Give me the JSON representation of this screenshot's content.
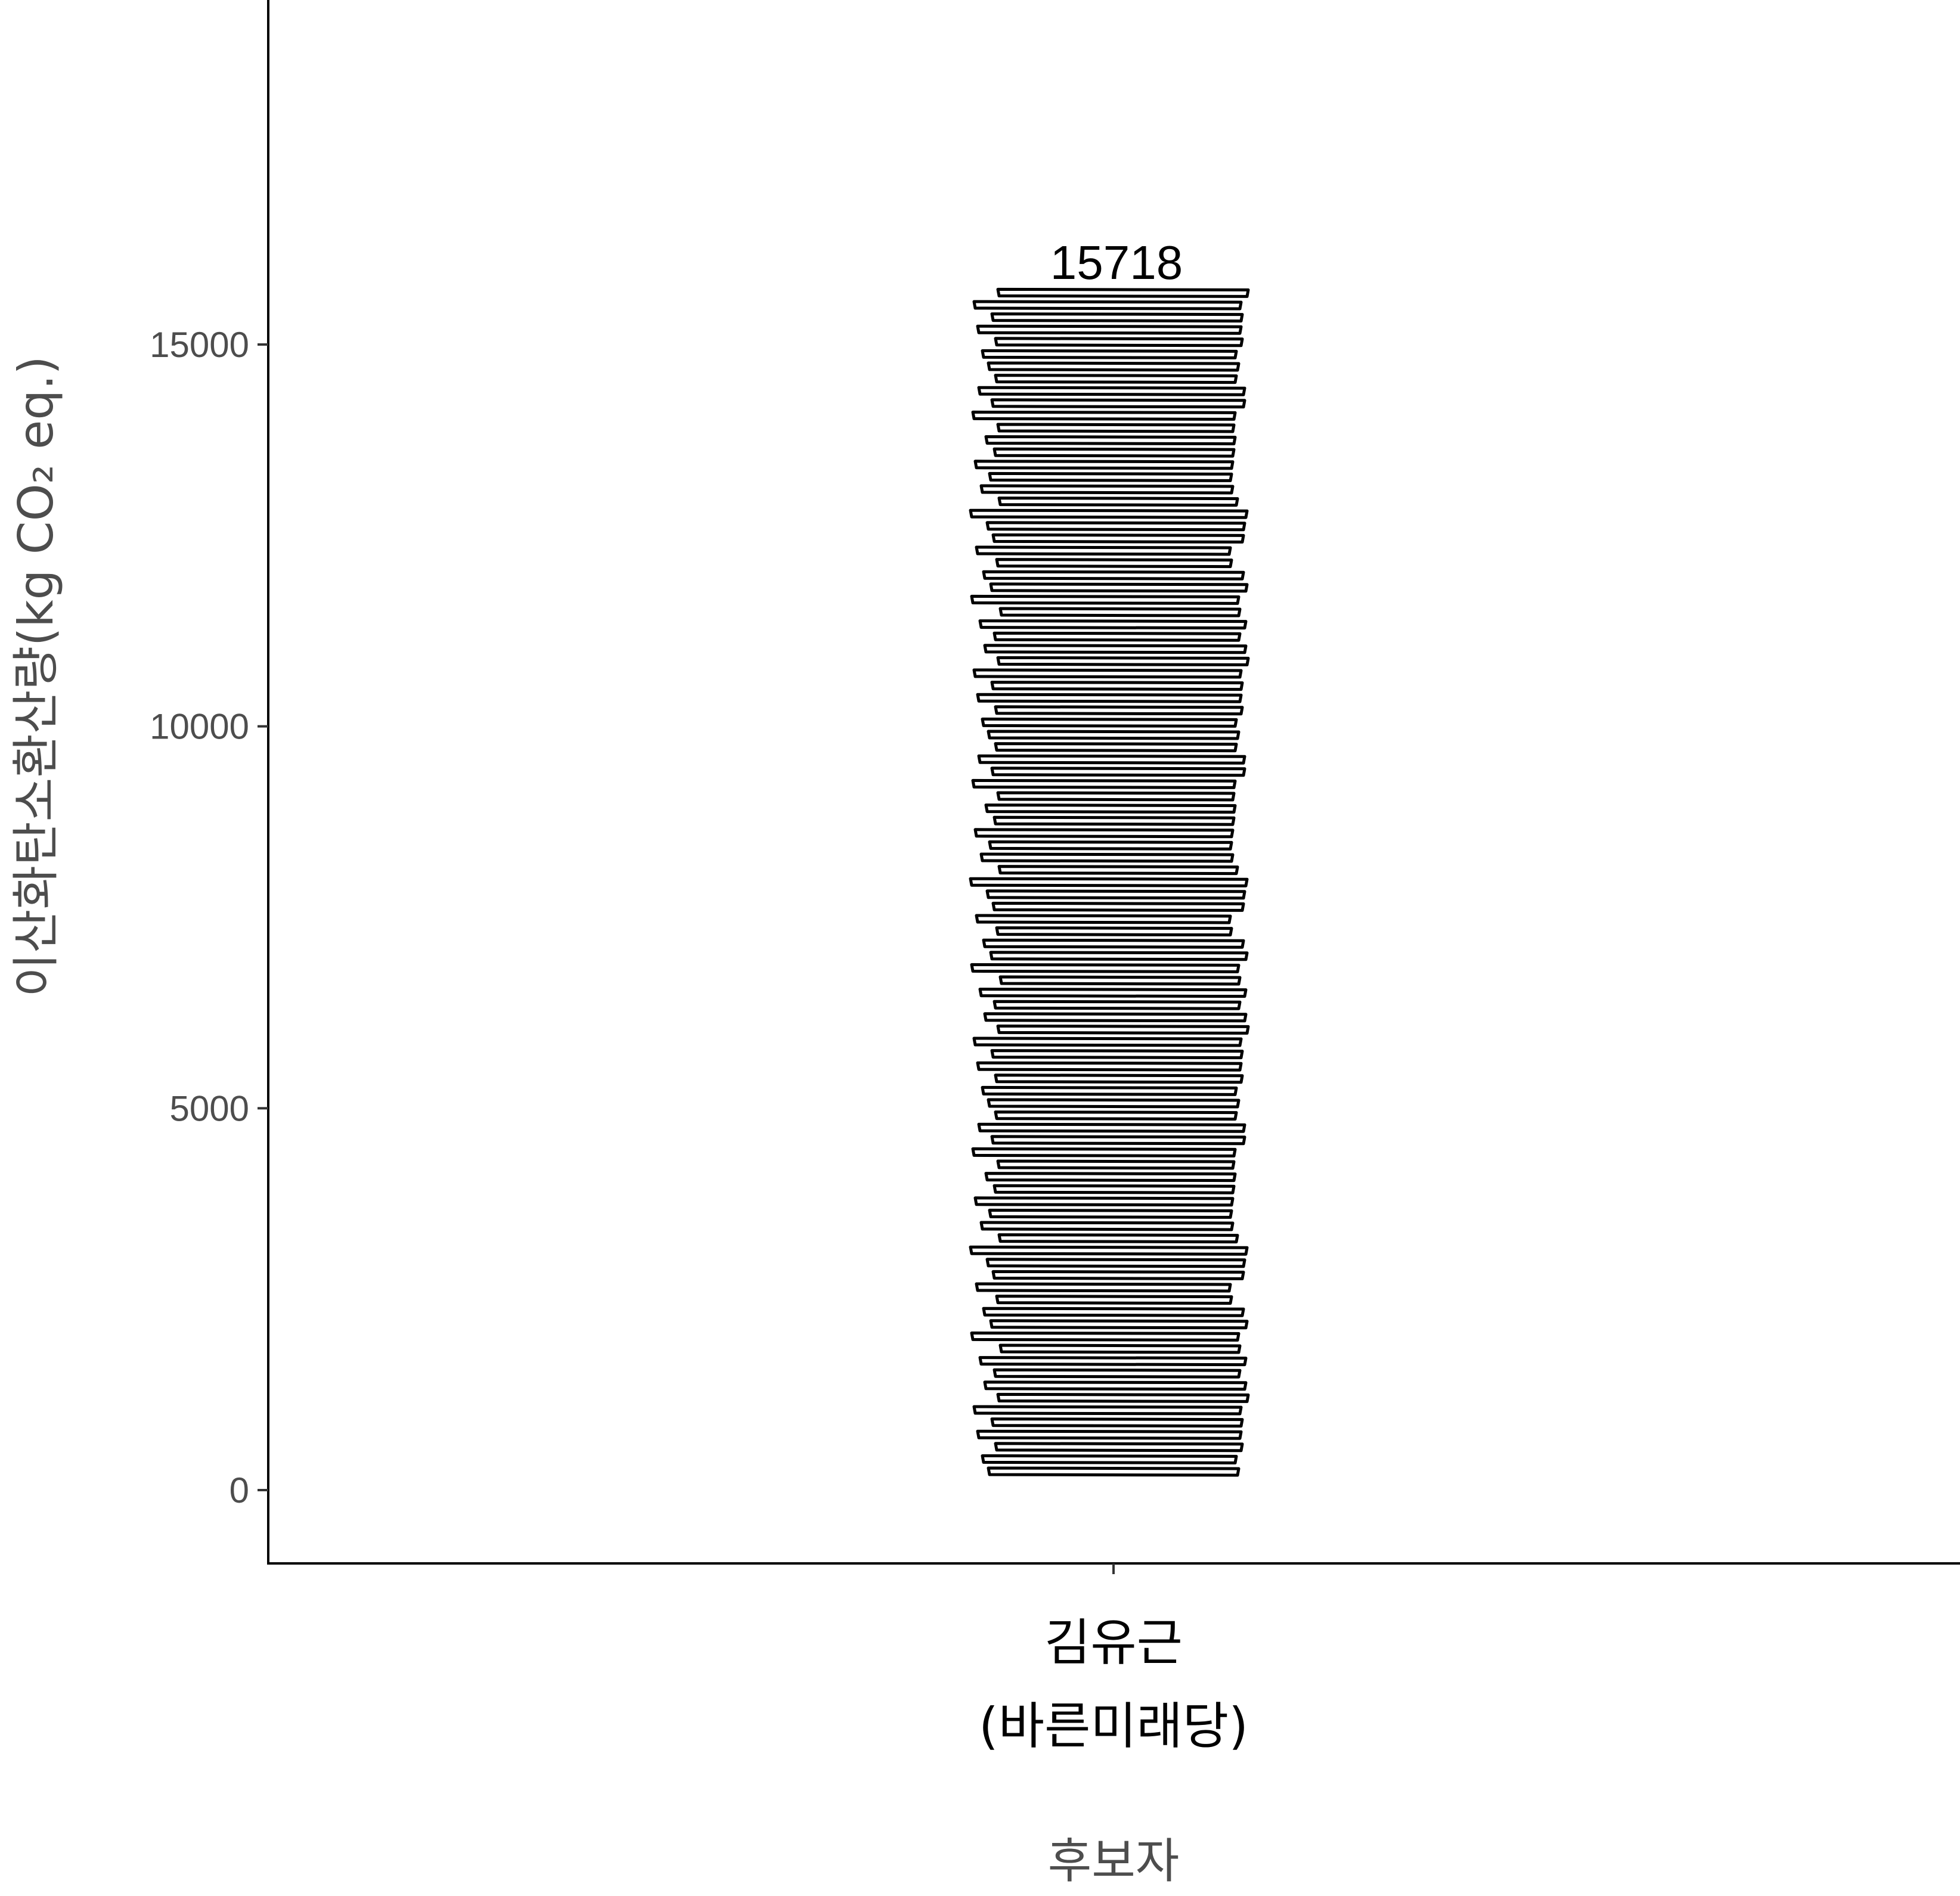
{
  "chart_data": {
    "type": "bar",
    "categories": [
      [
        "김유근",
        "(바른미래당)"
      ]
    ],
    "values": [
      15718
    ],
    "data_labels": [
      "15718"
    ],
    "xlabel": "후보자",
    "ylabel": "이산화탄소환산량(kg CO₂ eq.)",
    "ylim": [
      -950,
      19700
    ],
    "yticks": [
      0,
      5000,
      10000,
      15000
    ],
    "ytick_labels": [
      "0",
      "5000",
      "10000",
      "15000"
    ],
    "grid": false,
    "legend": "none",
    "bar_fill": "#ffffff",
    "bar_stroke": "#000000",
    "style": "stacked-paper-sheets"
  }
}
